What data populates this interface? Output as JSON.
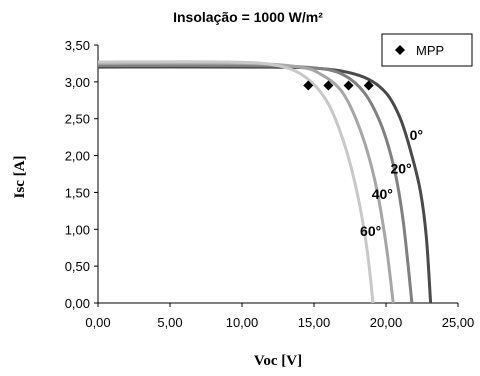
{
  "chart_data": {
    "type": "line",
    "title": "Insolação = 1000 W/m²",
    "xlabel": "Voc [V]",
    "ylabel": "Isc [A]",
    "xlim": [
      0,
      25
    ],
    "ylim": [
      0,
      3.5
    ],
    "x_ticks": [
      "0,00",
      "5,00",
      "10,00",
      "15,00",
      "20,00",
      "25,00"
    ],
    "y_ticks": [
      "0,00",
      "0,50",
      "1,00",
      "1,50",
      "2,00",
      "2,50",
      "3,00",
      "3,50"
    ],
    "grid": false,
    "legend": {
      "label": "MPP",
      "position": "top-right"
    },
    "series": [
      {
        "name": "0°",
        "color": "#4a4a4a",
        "points": [
          [
            0,
            3.2
          ],
          [
            12,
            3.2
          ],
          [
            16,
            3.17
          ],
          [
            18.5,
            3.06
          ],
          [
            20,
            2.85
          ],
          [
            21,
            2.5
          ],
          [
            21.8,
            2.0
          ],
          [
            22.4,
            1.5
          ],
          [
            22.8,
            0.9
          ],
          [
            23.1,
            0.0
          ]
        ]
      },
      {
        "name": "20°",
        "color": "#808080",
        "points": [
          [
            0,
            3.22
          ],
          [
            11,
            3.22
          ],
          [
            15,
            3.19
          ],
          [
            17,
            3.1
          ],
          [
            18.5,
            2.85
          ],
          [
            19.7,
            2.4
          ],
          [
            20.6,
            1.8
          ],
          [
            21.2,
            1.1
          ],
          [
            21.8,
            0.0
          ]
        ]
      },
      {
        "name": "40°",
        "color": "#a6a6a6",
        "points": [
          [
            0,
            3.25
          ],
          [
            10,
            3.25
          ],
          [
            14,
            3.2
          ],
          [
            15.5,
            3.1
          ],
          [
            17,
            2.85
          ],
          [
            18.3,
            2.3
          ],
          [
            19.3,
            1.6
          ],
          [
            20.0,
            0.8
          ],
          [
            20.5,
            0.0
          ]
        ]
      },
      {
        "name": "60°",
        "color": "#c8c8c8",
        "points": [
          [
            0,
            3.27
          ],
          [
            9,
            3.27
          ],
          [
            12.5,
            3.22
          ],
          [
            14.5,
            3.05
          ],
          [
            16.0,
            2.7
          ],
          [
            17.2,
            2.1
          ],
          [
            18.1,
            1.4
          ],
          [
            18.7,
            0.7
          ],
          [
            19.1,
            0.0
          ]
        ]
      }
    ],
    "mpp_points": [
      [
        14.6,
        2.95
      ],
      [
        16.0,
        2.95
      ],
      [
        17.4,
        2.95
      ],
      [
        18.8,
        2.95
      ]
    ]
  }
}
